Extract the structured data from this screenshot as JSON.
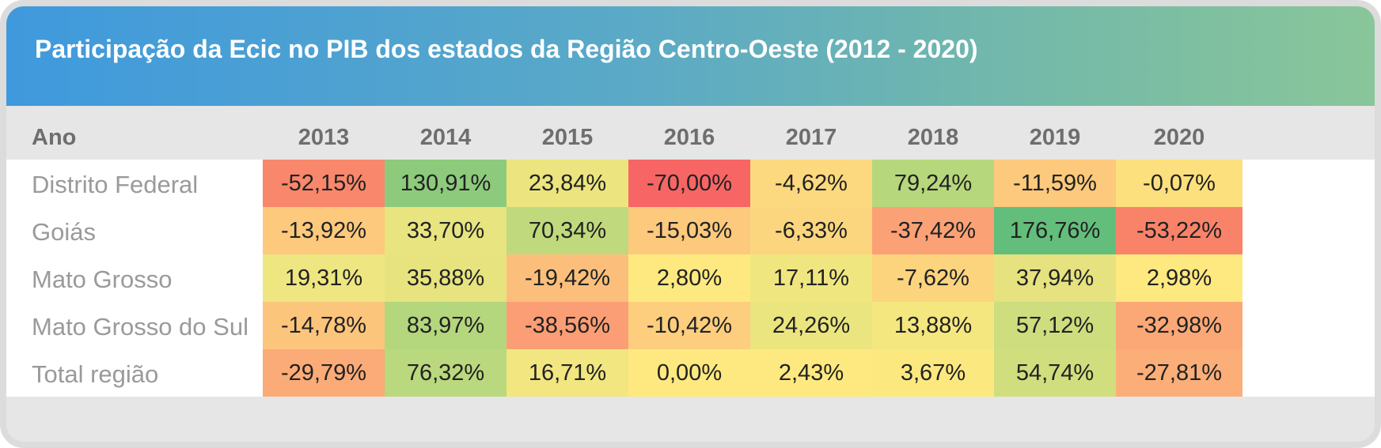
{
  "title": "Participação da Ecic no PIB dos estados da Região Centro-Oeste (2012 - 2020)",
  "table": {
    "row_header_label": "Ano",
    "years": [
      "2013",
      "2014",
      "2015",
      "2016",
      "2017",
      "2018",
      "2019",
      "2020"
    ],
    "rows": [
      {
        "label": "Distrito Federal",
        "values": [
          "-52,15%",
          "130,91%",
          "23,84%",
          "-70,00%",
          "-4,62%",
          "79,24%",
          "-11,59%",
          "-0,07%"
        ],
        "colors": [
          "#f9876b",
          "#8dca7c",
          "#ece57f",
          "#f86565",
          "#fcd97e",
          "#b7d77d",
          "#fcc97d",
          "#fde07e"
        ]
      },
      {
        "label": "Goiás",
        "values": [
          "-13,92%",
          "33,70%",
          "70,34%",
          "-15,03%",
          "-6,33%",
          "-37,42%",
          "176,76%",
          "-53,22%"
        ],
        "colors": [
          "#fcc97d",
          "#e8e47f",
          "#c0d97d",
          "#fcc97d",
          "#fcd67e",
          "#fba176",
          "#63be7b",
          "#f98369"
        ]
      },
      {
        "label": "Mato Grosso",
        "values": [
          "19,31%",
          "35,88%",
          "-19,42%",
          "2,80%",
          "17,11%",
          "-7,62%",
          "37,94%",
          "2,98%"
        ],
        "colors": [
          "#eee680",
          "#e7e37f",
          "#fcbf7b",
          "#fde980",
          "#f0e680",
          "#fcd47e",
          "#e5e27f",
          "#fde980"
        ]
      },
      {
        "label": "Mato Grosso do Sul",
        "values": [
          "-14,78%",
          "83,97%",
          "-38,56%",
          "-10,42%",
          "24,26%",
          "13,88%",
          "57,12%",
          "-32,98%"
        ],
        "colors": [
          "#fcc57c",
          "#b4d67d",
          "#fb9e75",
          "#fcce7e",
          "#ebe57f",
          "#f4e780",
          "#cedd7e",
          "#fba876"
        ]
      },
      {
        "label": "Total região",
        "values": [
          "-29,79%",
          "76,32%",
          "16,71%",
          "0,00%",
          "2,43%",
          "3,67%",
          "54,74%",
          "-27,81%"
        ],
        "colors": [
          "#fbab77",
          "#bad87d",
          "#f1e680",
          "#fde980",
          "#fde980",
          "#fbe980",
          "#d1de7e",
          "#fbae78"
        ]
      }
    ]
  }
}
